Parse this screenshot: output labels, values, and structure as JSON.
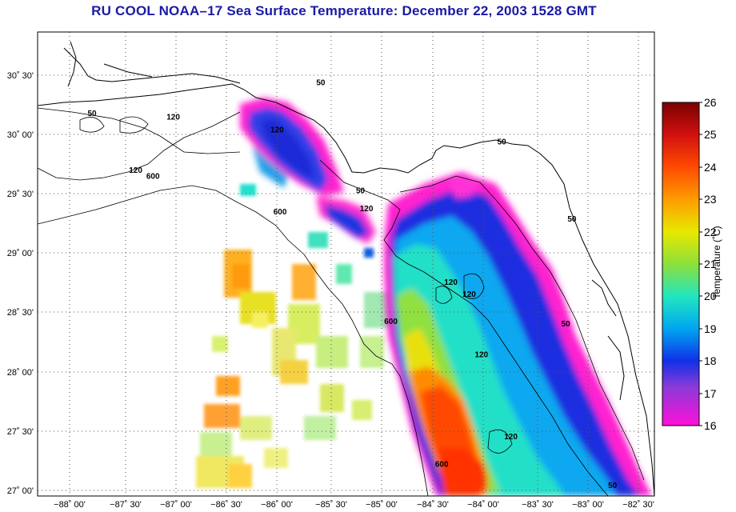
{
  "title": "RU COOL  NOAA–17  Sea Surface Temperature:  December 22, 2003 1528 GMT",
  "lat_labels": [
    "30˚ 30'",
    "30˚ 00'",
    "29˚ 30'",
    "29˚ 00'",
    "28˚ 30'",
    "28˚ 00'",
    "27˚ 30'",
    "27˚ 00'"
  ],
  "lon_labels": [
    "−88˚ 00'",
    "−87˚ 30'",
    "−87˚ 00'",
    "−86˚ 30'",
    "−86˚ 00'",
    "−85˚ 30'",
    "−85˚ 00'",
    "−84˚ 30'",
    "−84˚ 00'",
    "−83˚ 30'",
    "−83˚ 00'",
    "−82˚ 30'"
  ],
  "colorbar": {
    "title": "Temperature (˚C)",
    "ticks": [
      "26",
      "25",
      "24",
      "23",
      "22",
      "21",
      "20",
      "19",
      "18",
      "17",
      "16"
    ],
    "min": 16,
    "max": 26
  },
  "contour_labels": [
    {
      "text": "50",
      "lon": -85.53,
      "lat": 30.41
    },
    {
      "text": "50",
      "lon": -87.78,
      "lat": 30.15
    },
    {
      "text": "120",
      "lon": -86.98,
      "lat": 30.12
    },
    {
      "text": "120",
      "lon": -87.35,
      "lat": 29.67
    },
    {
      "text": "600",
      "lon": -87.18,
      "lat": 29.62
    },
    {
      "text": "120",
      "lon": -85.96,
      "lat": 30.01
    },
    {
      "text": "600",
      "lon": -85.93,
      "lat": 29.32
    },
    {
      "text": "50",
      "lon": -85.14,
      "lat": 29.5
    },
    {
      "text": "120",
      "lon": -85.08,
      "lat": 29.35
    },
    {
      "text": "50",
      "lon": -83.75,
      "lat": 29.91
    },
    {
      "text": "120",
      "lon": -84.25,
      "lat": 28.73
    },
    {
      "text": "120",
      "lon": -84.07,
      "lat": 28.63
    },
    {
      "text": "600",
      "lon": -84.84,
      "lat": 28.4
    },
    {
      "text": "120",
      "lon": -83.95,
      "lat": 28.12
    },
    {
      "text": "50",
      "lon": -83.12,
      "lat": 28.38
    },
    {
      "text": "120",
      "lon": -83.66,
      "lat": 27.43
    },
    {
      "text": "600",
      "lon": -84.34,
      "lat": 27.2
    },
    {
      "text": "50",
      "lon": -82.66,
      "lat": 27.02
    },
    {
      "text": "50",
      "lon": -83.06,
      "lat": 29.26
    }
  ]
}
